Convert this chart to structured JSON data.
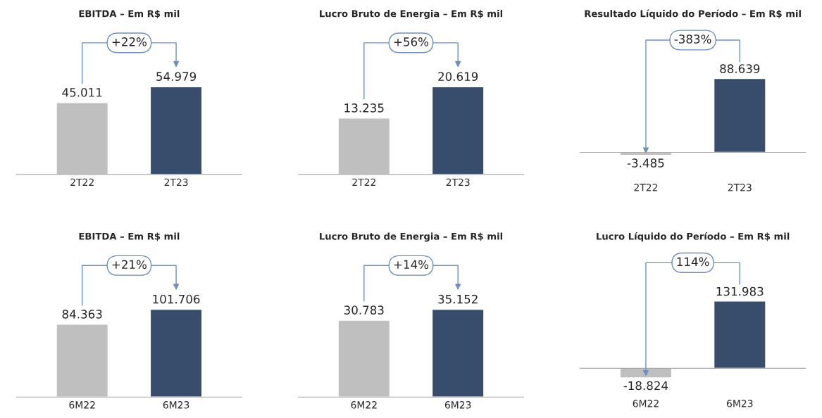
{
  "chart_data": [
    {
      "type": "bar",
      "title": "EBITDA – Em R$ mil",
      "categories": [
        "2T22",
        "2T23"
      ],
      "values": [
        45011,
        54979
      ],
      "value_labels": [
        "45.011",
        "54.979"
      ],
      "colors": [
        "#bfbfbf",
        "#384d6b"
      ],
      "annotations": [
        "+22%"
      ],
      "grid": false,
      "legend": false
    },
    {
      "type": "bar",
      "title": "Lucro Bruto de Energia – Em R$ mil",
      "categories": [
        "2T22",
        "2T23"
      ],
      "values": [
        13235,
        20619
      ],
      "value_labels": [
        "13.235",
        "20.619"
      ],
      "colors": [
        "#bfbfbf",
        "#384d6b"
      ],
      "annotations": [
        "+56%"
      ],
      "grid": false,
      "legend": false
    },
    {
      "type": "bar",
      "title": "Resultado Líquido do Período – Em R$ mil",
      "categories": [
        "2T22",
        "2T23"
      ],
      "values": [
        -3485,
        88639
      ],
      "value_labels": [
        "-3.485",
        "88.639"
      ],
      "colors": [
        "#bfbfbf",
        "#384d6b"
      ],
      "annotations": [
        "-383%"
      ],
      "grid": false,
      "legend": false
    },
    {
      "type": "bar",
      "title": "EBITDA – Em R$ mil",
      "categories": [
        "6M22",
        "6M23"
      ],
      "values": [
        84363,
        101706
      ],
      "value_labels": [
        "84.363",
        "101.706"
      ],
      "colors": [
        "#bfbfbf",
        "#384d6b"
      ],
      "annotations": [
        "+21%"
      ],
      "grid": false,
      "legend": false
    },
    {
      "type": "bar",
      "title": "Lucro Bruto de Energia – Em R$ mil",
      "categories": [
        "6M22",
        "6M23"
      ],
      "values": [
        30783,
        35152
      ],
      "value_labels": [
        "30.783",
        "35.152"
      ],
      "colors": [
        "#bfbfbf",
        "#384d6b"
      ],
      "annotations": [
        "+14%"
      ],
      "grid": false,
      "legend": false
    },
    {
      "type": "bar",
      "title": "Lucro Líquido do Período – Em R$ mil",
      "categories": [
        "6M22",
        "6M23"
      ],
      "values": [
        -18824,
        131983
      ],
      "value_labels": [
        "-18.824",
        "131.983"
      ],
      "colors": [
        "#bfbfbf",
        "#384d6b"
      ],
      "annotations": [
        "114%"
      ],
      "grid": false,
      "legend": false
    }
  ]
}
